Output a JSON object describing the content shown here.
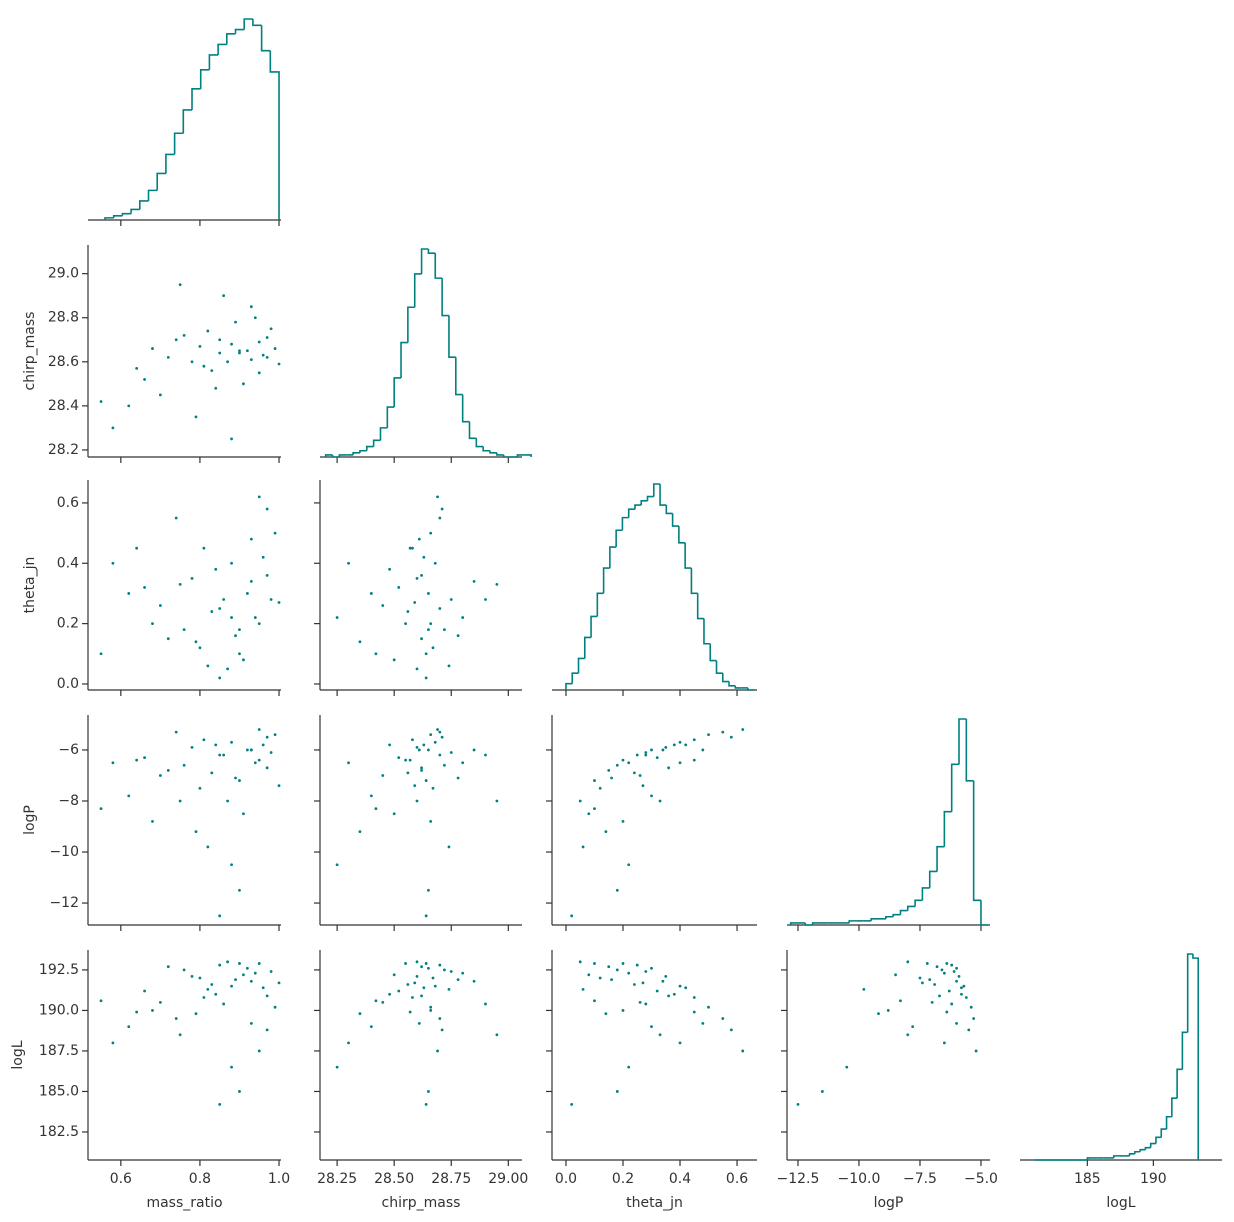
{
  "chart_data": {
    "type": "corner",
    "color": "#008080",
    "variables": [
      {
        "label": "mass_ratio",
        "xlim": [
          0.517,
          1.005
        ],
        "xticks": [
          0.6,
          0.8,
          {
            "value": 1,
            "label": "1.0"
          }
        ],
        "samples": [
          0.92,
          0.85,
          0.78,
          0.95,
          0.88,
          0.72,
          0.98,
          0.81,
          0.9,
          0.66,
          0.94,
          0.84,
          0.76,
          0.99,
          0.87,
          0.7,
          0.93,
          0.8,
          0.62,
          0.96,
          0.83,
          0.89,
          0.74,
          0.91,
          0.97,
          0.68,
          0.86,
          0.79,
          0.58,
          0.93,
          0.82,
          0.95,
          0.88,
          0.75,
          1.0,
          0.64,
          0.9,
          0.55,
          0.97,
          0.85
        ],
        "bins": [
          0.56,
          0.582,
          0.604,
          0.626,
          0.648,
          0.67,
          0.692,
          0.714,
          0.736,
          0.758,
          0.78,
          0.802,
          0.824,
          0.846,
          0.868,
          0.89,
          0.912,
          0.934,
          0.956,
          0.978,
          1.0
        ],
        "counts": [
          1,
          2,
          3,
          5,
          9,
          14,
          22,
          31,
          41,
          52,
          62,
          71,
          78,
          83,
          88,
          90,
          95,
          92,
          80,
          70
        ]
      },
      {
        "label": "chirp_mass",
        "xlim": [
          28.175,
          29.06
        ],
        "xticks": [
          28.25,
          {
            "value": 28.5,
            "label": "28.50"
          },
          28.75,
          {
            "value": 29,
            "label": "29.00"
          }
        ],
        "ylim": [
          28.168,
          29.13
        ],
        "yticks": [
          28.2,
          28.4,
          28.6,
          28.8,
          {
            "value": 29,
            "label": "29.0"
          }
        ],
        "samples": [
          28.65,
          28.7,
          28.6,
          28.55,
          28.68,
          28.62,
          28.75,
          28.58,
          28.64,
          28.52,
          28.8,
          28.48,
          28.72,
          28.66,
          28.6,
          28.45,
          28.85,
          28.67,
          28.4,
          28.63,
          28.56,
          28.78,
          28.7,
          28.5,
          28.62,
          28.66,
          28.9,
          28.35,
          28.3,
          28.61,
          28.74,
          28.69,
          28.25,
          28.95,
          28.59,
          28.57,
          28.65,
          28.42,
          28.71,
          28.64
        ],
        "bins": [
          28.2,
          28.23,
          28.26,
          28.29,
          28.32,
          28.35,
          28.38,
          28.41,
          28.44,
          28.47,
          28.5,
          28.53,
          28.56,
          28.59,
          28.62,
          28.65,
          28.68,
          28.71,
          28.74,
          28.77,
          28.8,
          28.83,
          28.86,
          28.89,
          28.92,
          28.95,
          28.98,
          29.01,
          29.04,
          29.07,
          29.1
        ],
        "counts": [
          1,
          0,
          1,
          1,
          2,
          3,
          5,
          8,
          14,
          24,
          38,
          55,
          72,
          88,
          100,
          98,
          86,
          68,
          48,
          30,
          17,
          9,
          5,
          3,
          2,
          1,
          0,
          0,
          1,
          1
        ]
      },
      {
        "label": "theta_jn",
        "xlim": [
          -0.049,
          0.67
        ],
        "xticks": [
          {
            "value": 0,
            "label": "0.0"
          },
          0.2,
          0.4,
          0.6
        ],
        "ylim": [
          -0.02,
          0.676
        ],
        "yticks": [
          {
            "value": 0,
            "label": "0.0"
          },
          0.2,
          0.4,
          0.6
        ],
        "samples": [
          0.3,
          0.25,
          0.35,
          0.2,
          0.4,
          0.15,
          0.28,
          0.45,
          0.1,
          0.32,
          0.22,
          0.38,
          0.18,
          0.5,
          0.05,
          0.26,
          0.34,
          0.12,
          0.3,
          0.42,
          0.24,
          0.16,
          0.55,
          0.08,
          0.36,
          0.2,
          0.28,
          0.14,
          0.4,
          0.48,
          0.06,
          0.62,
          0.22,
          0.33,
          0.27,
          0.45,
          0.18,
          0.1,
          0.58,
          0.02
        ],
        "bins": [
          0,
          0.022,
          0.044,
          0.066,
          0.088,
          0.11,
          0.132,
          0.154,
          0.176,
          0.198,
          0.22,
          0.242,
          0.264,
          0.286,
          0.308,
          0.33,
          0.352,
          0.374,
          0.396,
          0.418,
          0.44,
          0.462,
          0.484,
          0.506,
          0.528,
          0.55,
          0.572,
          0.594,
          0.616,
          0.638,
          0.66
        ],
        "counts": [
          3,
          8,
          15,
          25,
          35,
          46,
          58,
          68,
          76,
          82,
          86,
          88,
          90,
          92,
          98,
          88,
          84,
          78,
          70,
          58,
          46,
          34,
          22,
          14,
          8,
          4,
          2,
          1,
          1,
          0
        ]
      },
      {
        "label": "logP",
        "xlim": [
          -12.95,
          -4.63
        ],
        "xticks": [
          {
            "value": -12.5,
            "label": "−12.5"
          },
          {
            "value": -10,
            "label": "−10.0"
          },
          {
            "value": -7.5,
            "label": "−7.5"
          },
          {
            "value": -5,
            "label": "−5.0"
          }
        ],
        "ylim": [
          -12.86,
          -4.63
        ],
        "yticks": [
          {
            "value": -12,
            "label": "−12"
          },
          {
            "value": -10,
            "label": "−10"
          },
          {
            "value": -8,
            "label": "−8"
          },
          {
            "value": -6,
            "label": "−6"
          }
        ],
        "samples": [
          -6.0,
          -6.2,
          -5.9,
          -6.4,
          -5.7,
          -6.8,
          -6.1,
          -5.6,
          -7.2,
          -6.3,
          -6.5,
          -5.8,
          -6.6,
          -5.4,
          -8.0,
          -7.0,
          -6.0,
          -7.5,
          -7.8,
          -5.8,
          -6.9,
          -7.1,
          -5.3,
          -8.5,
          -6.7,
          -8.8,
          -6.2,
          -9.2,
          -6.5,
          -6.0,
          -9.8,
          -5.2,
          -10.5,
          -8.0,
          -7.4,
          -6.4,
          -11.5,
          -8.3,
          -5.5,
          -12.5
        ],
        "bins": [
          -12.8,
          -12.5,
          -12.2,
          -11.9,
          -11.6,
          -11.3,
          -11.0,
          -10.7,
          -10.4,
          -10.1,
          -9.8,
          -9.5,
          -9.2,
          -8.9,
          -8.6,
          -8.3,
          -8.0,
          -7.7,
          -7.4,
          -7.1,
          -6.8,
          -6.5,
          -6.2,
          -5.9,
          -5.6,
          -5.3,
          -5.0,
          -4.7
        ],
        "counts": [
          1,
          1,
          0,
          1,
          1,
          1,
          1,
          1,
          2,
          2,
          2,
          3,
          3,
          4,
          5,
          7,
          9,
          12,
          18,
          26,
          38,
          55,
          78,
          100,
          70,
          12,
          0
        ]
      },
      {
        "label": "logL",
        "xlim": [
          179.9,
          195.2
        ],
        "xticks": [
          185,
          190
        ],
        "ylim": [
          180.77,
          193.73
        ],
        "yticks": [
          182.5,
          {
            "value": 185,
            "label": "185.0"
          },
          187.5,
          {
            "value": 190,
            "label": "190.0"
          },
          192.5
        ],
        "samples": [
          192.6,
          192.8,
          192.1,
          192.9,
          191.5,
          192.7,
          192.4,
          190.8,
          192.9,
          191.2,
          192.3,
          191.0,
          192.5,
          190.2,
          193.0,
          190.5,
          191.8,
          192.0,
          189.0,
          191.4,
          191.6,
          191.9,
          189.5,
          192.2,
          190.9,
          190.0,
          190.4,
          189.8,
          188.0,
          189.2,
          191.3,
          187.5,
          186.5,
          188.5,
          191.7,
          189.9,
          185.0,
          190.6,
          188.8,
          184.2
        ],
        "bins": [
          181,
          181.4,
          181.8,
          182.2,
          182.6,
          183,
          183.4,
          183.8,
          184.2,
          184.6,
          185,
          185.4,
          185.8,
          186.2,
          186.6,
          187,
          187.4,
          187.8,
          188.2,
          188.6,
          189,
          189.4,
          189.8,
          190.2,
          190.6,
          191,
          191.4,
          191.8,
          192.2,
          192.6,
          193,
          193.4
        ],
        "counts": [
          0,
          0,
          0,
          0,
          0,
          0,
          0,
          0,
          0,
          0,
          1,
          1,
          1,
          1,
          1,
          2,
          2,
          2,
          3,
          4,
          5,
          6,
          8,
          11,
          15,
          21,
          30,
          44,
          62,
          100,
          98
        ]
      }
    ]
  }
}
